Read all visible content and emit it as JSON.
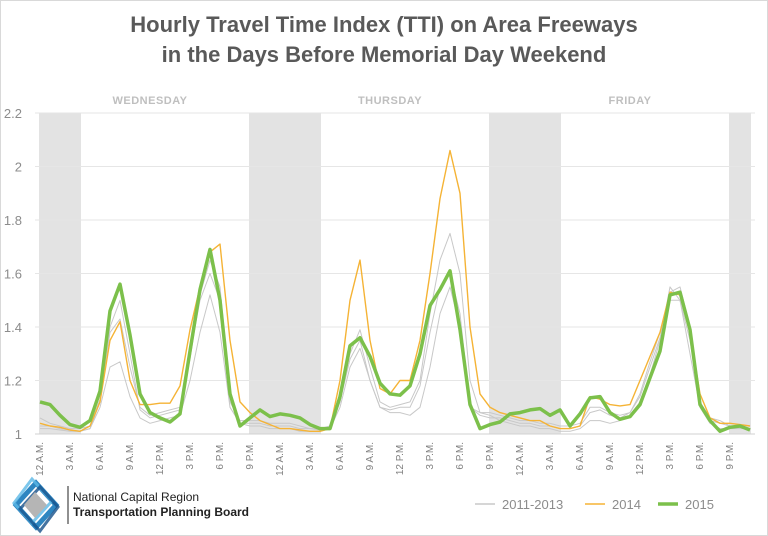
{
  "chart_data": {
    "type": "line",
    "title": [
      "Hourly Travel Time Index (TTI) on Area Freeways",
      "in the Days Before Memorial Day Weekend"
    ],
    "xlabel": "",
    "ylabel": "",
    "ylim": [
      1,
      2.2
    ],
    "yticks": [
      "1",
      "1.2",
      "1.4",
      "1.6",
      "1.8",
      "2",
      "2.2"
    ],
    "ytick_values": [
      1,
      1.2,
      1.4,
      1.6,
      1.8,
      2,
      2.2
    ],
    "grid": true,
    "legend_position": "bottom-right",
    "day_labels": [
      {
        "label": "WEDNESDAY",
        "center_hour": 12
      },
      {
        "label": "THURSDAY",
        "center_hour": 36
      },
      {
        "label": "FRIDAY",
        "center_hour": 60
      }
    ],
    "shaded_hour_ranges": [
      [
        0,
        4
      ],
      [
        21,
        28
      ],
      [
        45,
        52
      ],
      [
        69,
        71
      ]
    ],
    "xticks": [
      {
        "hour": 0,
        "label": "12 A.M."
      },
      {
        "hour": 3,
        "label": "3 A.M."
      },
      {
        "hour": 6,
        "label": "6 A.M."
      },
      {
        "hour": 9,
        "label": "9 A.M."
      },
      {
        "hour": 12,
        "label": "12 P.M."
      },
      {
        "hour": 15,
        "label": "3 P.M."
      },
      {
        "hour": 18,
        "label": "6 P.M."
      },
      {
        "hour": 21,
        "label": "9 P.M."
      },
      {
        "hour": 24,
        "label": "12 A.M."
      },
      {
        "hour": 27,
        "label": "3 A.M."
      },
      {
        "hour": 30,
        "label": "6 A.M."
      },
      {
        "hour": 33,
        "label": "9 A.M."
      },
      {
        "hour": 36,
        "label": "12 P.M."
      },
      {
        "hour": 39,
        "label": "3 P.M."
      },
      {
        "hour": 42,
        "label": "6 P.M."
      },
      {
        "hour": 45,
        "label": "9 P.M."
      },
      {
        "hour": 48,
        "label": "12 A.M."
      },
      {
        "hour": 51,
        "label": "3 A.M."
      },
      {
        "hour": 54,
        "label": "6 A.M."
      },
      {
        "hour": 57,
        "label": "9 A.M."
      },
      {
        "hour": 60,
        "label": "12 P.M."
      },
      {
        "hour": 63,
        "label": "3 P.M."
      },
      {
        "hour": 66,
        "label": "6 P.M."
      },
      {
        "hour": 69,
        "label": "9 P.M."
      }
    ],
    "series": [
      {
        "name": "2011",
        "legend_group": "2011-2013",
        "color": "#c8c8c8",
        "values": [
          1.02,
          1.02,
          1.015,
          1.01,
          1.01,
          1.02,
          1.1,
          1.25,
          1.27,
          1.14,
          1.06,
          1.04,
          1.05,
          1.06,
          1.07,
          1.2,
          1.38,
          1.52,
          1.38,
          1.1,
          1.04,
          1.03,
          1.03,
          1.02,
          1.02,
          1.02,
          1.01,
          1.01,
          1.01,
          1.02,
          1.1,
          1.25,
          1.32,
          1.2,
          1.1,
          1.08,
          1.08,
          1.07,
          1.1,
          1.25,
          1.45,
          1.55,
          1.4,
          1.1,
          1.08,
          1.07,
          1.05,
          1.04,
          1.03,
          1.03,
          1.02,
          1.02,
          1.01,
          1.01,
          1.02,
          1.05,
          1.05,
          1.04,
          1.05,
          1.07,
          1.12,
          1.22,
          1.35,
          1.55,
          1.5,
          1.3,
          1.1,
          1.04,
          1.02,
          1.02,
          1.02,
          1.02
        ]
      },
      {
        "name": "2012",
        "legend_group": "2011-2013",
        "color": "#c8c8c8",
        "values": [
          1.06,
          1.04,
          1.03,
          1.02,
          1.02,
          1.03,
          1.13,
          1.38,
          1.43,
          1.25,
          1.1,
          1.07,
          1.08,
          1.09,
          1.1,
          1.3,
          1.5,
          1.6,
          1.5,
          1.12,
          1.05,
          1.05,
          1.05,
          1.04,
          1.04,
          1.04,
          1.03,
          1.02,
          1.02,
          1.03,
          1.12,
          1.3,
          1.39,
          1.25,
          1.12,
          1.1,
          1.11,
          1.12,
          1.2,
          1.45,
          1.65,
          1.75,
          1.6,
          1.2,
          1.08,
          1.08,
          1.07,
          1.06,
          1.05,
          1.05,
          1.04,
          1.04,
          1.03,
          1.03,
          1.04,
          1.1,
          1.1,
          1.08,
          1.07,
          1.08,
          1.15,
          1.27,
          1.38,
          1.5,
          1.5,
          1.35,
          1.12,
          1.05,
          1.04,
          1.03,
          1.03,
          1.02
        ]
      },
      {
        "name": "2013",
        "legend_group": "2011-2013",
        "color": "#c8c8c8",
        "values": [
          1.03,
          1.03,
          1.02,
          1.015,
          1.01,
          1.02,
          1.12,
          1.4,
          1.5,
          1.3,
          1.09,
          1.06,
          1.07,
          1.08,
          1.09,
          1.28,
          1.52,
          1.65,
          1.55,
          1.15,
          1.04,
          1.04,
          1.04,
          1.03,
          1.03,
          1.03,
          1.02,
          1.02,
          1.015,
          1.02,
          1.12,
          1.28,
          1.35,
          1.2,
          1.1,
          1.09,
          1.1,
          1.1,
          1.18,
          1.38,
          1.55,
          1.6,
          1.45,
          1.1,
          1.07,
          1.06,
          1.06,
          1.05,
          1.04,
          1.04,
          1.03,
          1.03,
          1.02,
          1.02,
          1.03,
          1.08,
          1.09,
          1.07,
          1.06,
          1.08,
          1.14,
          1.25,
          1.36,
          1.53,
          1.55,
          1.4,
          1.12,
          1.06,
          1.05,
          1.03,
          1.03,
          1.02
        ]
      },
      {
        "name": "2014",
        "legend_group": "2014",
        "color": "#f5b335",
        "values": [
          1.04,
          1.03,
          1.025,
          1.015,
          1.01,
          1.03,
          1.12,
          1.35,
          1.42,
          1.2,
          1.11,
          1.11,
          1.115,
          1.115,
          1.18,
          1.39,
          1.55,
          1.68,
          1.71,
          1.35,
          1.12,
          1.08,
          1.05,
          1.035,
          1.02,
          1.02,
          1.015,
          1.01,
          1.01,
          1.02,
          1.2,
          1.5,
          1.65,
          1.35,
          1.17,
          1.15,
          1.2,
          1.2,
          1.35,
          1.6,
          1.88,
          2.06,
          1.9,
          1.4,
          1.15,
          1.1,
          1.08,
          1.07,
          1.06,
          1.05,
          1.05,
          1.03,
          1.02,
          1.02,
          1.03,
          1.14,
          1.13,
          1.11,
          1.105,
          1.11,
          1.2,
          1.29,
          1.38,
          1.53,
          1.52,
          1.38,
          1.15,
          1.06,
          1.04,
          1.04,
          1.035,
          1.03
        ]
      },
      {
        "name": "2015",
        "legend_group": "2015",
        "color": "#7cc04b",
        "values": [
          1.12,
          1.11,
          1.07,
          1.035,
          1.025,
          1.05,
          1.16,
          1.46,
          1.56,
          1.37,
          1.15,
          1.08,
          1.06,
          1.045,
          1.075,
          1.31,
          1.54,
          1.69,
          1.5,
          1.15,
          1.03,
          1.06,
          1.09,
          1.065,
          1.075,
          1.07,
          1.06,
          1.035,
          1.02,
          1.02,
          1.14,
          1.33,
          1.36,
          1.29,
          1.19,
          1.15,
          1.145,
          1.18,
          1.3,
          1.48,
          1.54,
          1.61,
          1.39,
          1.11,
          1.02,
          1.035,
          1.045,
          1.075,
          1.08,
          1.09,
          1.095,
          1.07,
          1.09,
          1.03,
          1.075,
          1.135,
          1.14,
          1.08,
          1.055,
          1.065,
          1.11,
          1.21,
          1.31,
          1.52,
          1.53,
          1.39,
          1.11,
          1.05,
          1.01,
          1.025,
          1.03,
          1.015
        ]
      }
    ],
    "legend": [
      {
        "label": "2011-2013",
        "color": "#c8c8c8"
      },
      {
        "label": "2014",
        "color": "#f5b335"
      },
      {
        "label": "2015",
        "color": "#7cc04b"
      }
    ]
  },
  "footer": {
    "org_line1": "National Capital Region",
    "org_line2": "Transportation Planning Board"
  }
}
